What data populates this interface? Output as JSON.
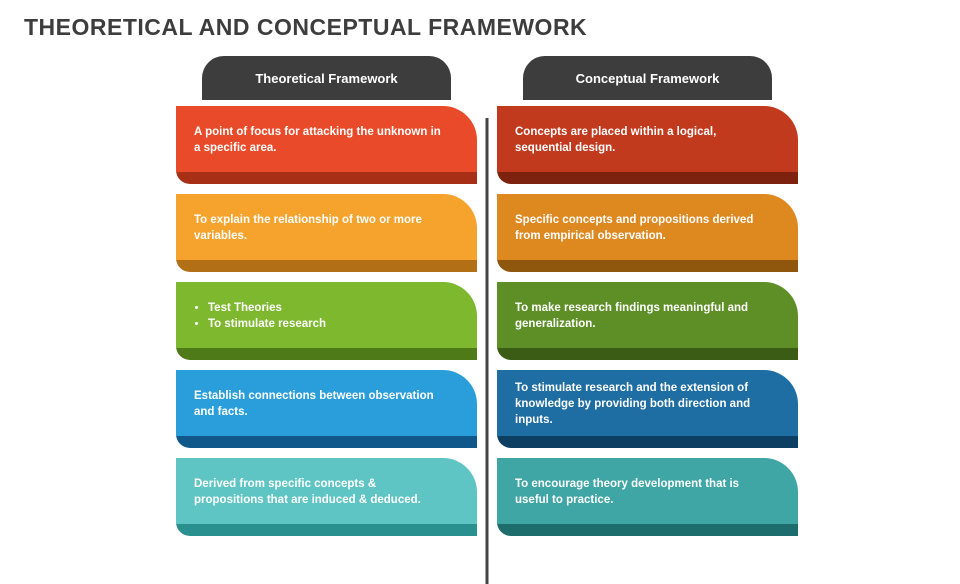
{
  "title": "THEORETICAL AND CONCEPTUAL FRAMEWORK",
  "columns": [
    {
      "header": "Theoretical Framework",
      "cards": [
        {
          "text": "A point of focus for attacking the unknown in a specific area.",
          "bg": "#e94b2a",
          "shadow": "#a62f15"
        },
        {
          "text": "To explain the relationship of two or more variables.",
          "bg": "#f5a32c",
          "shadow": "#b36f15"
        },
        {
          "bullets": [
            "Test Theories",
            "To stimulate research"
          ],
          "bg": "#7db82e",
          "shadow": "#4e7a18"
        },
        {
          "text": "Establish connections between observation and facts.",
          "bg": "#2a9edb",
          "shadow": "#10588a"
        },
        {
          "text": "Derived from specific concepts & propositions that are induced & deduced.",
          "bg": "#5fc4c4",
          "shadow": "#2a8f8f"
        }
      ]
    },
    {
      "header": "Conceptual Framework",
      "cards": [
        {
          "text": "Concepts are placed within a logical, sequential design.",
          "bg": "#c23a1e",
          "shadow": "#7d220f"
        },
        {
          "text": "Specific concepts and propositions derived from empirical observation.",
          "bg": "#de8820",
          "shadow": "#8f560e"
        },
        {
          "text": "To make research findings meaningful and generalization.",
          "bg": "#5d8f26",
          "shadow": "#3a5c14"
        },
        {
          "text": "To stimulate research and the extension of knowledge by providing both direction and inputs.",
          "bg": "#1e6da3",
          "shadow": "#0d3f63"
        },
        {
          "text": "To encourage theory development that is useful to practice.",
          "bg": "#3fa5a5",
          "shadow": "#1d6d6d"
        }
      ]
    }
  ]
}
